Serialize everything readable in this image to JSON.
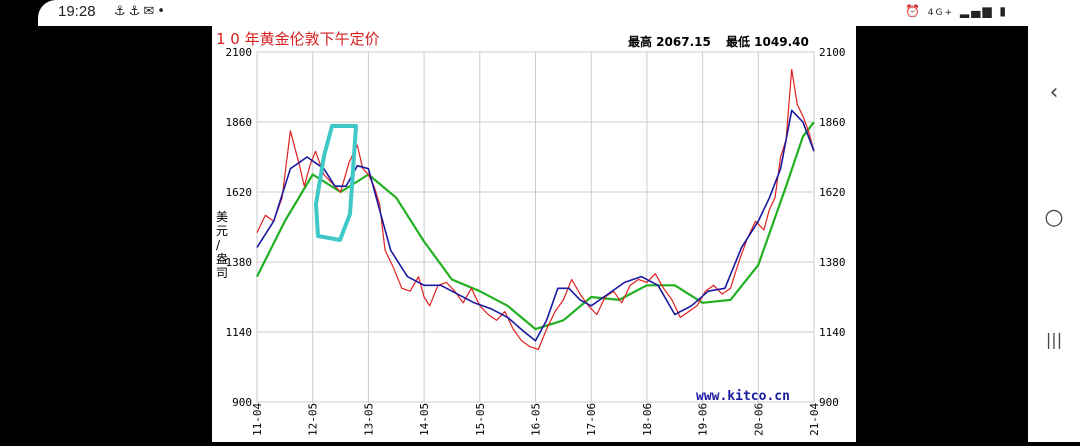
{
  "status_bar": {
    "time": "19:28",
    "left_icons": [
      "anchor-icon",
      "anchor-icon",
      "mail-icon",
      "dot-icon"
    ],
    "right_icons": [
      "alarm-icon",
      "4g-icon",
      "signal-icon",
      "battery-icon"
    ],
    "network_label": "4G+"
  },
  "nav": {
    "back": "‹",
    "home": "○",
    "recent": "|||"
  },
  "chart_data": {
    "type": "line",
    "title": "1 0 年黄金伦敦下午定价",
    "high_label": "最高 2067.15",
    "low_label": "最低 1049.40",
    "ylabel": "美元/盎司",
    "watermark": "www.kitco.cn",
    "ylim": [
      900,
      2100
    ],
    "y_ticks": [
      900,
      1140,
      1380,
      1620,
      1860,
      2100
    ],
    "x_ticks": [
      "11-04",
      "12-05",
      "13-05",
      "14-05",
      "15-05",
      "16-05",
      "17-06",
      "18-06",
      "19-06",
      "20-06",
      "21-04"
    ],
    "grid": true,
    "colors": {
      "price": "#e02020",
      "short_ma": "#1a1aa0",
      "long_ma": "#22b022",
      "highlight": "#40c8c8",
      "title": "#d62020"
    },
    "series": [
      {
        "key": "price",
        "x": [
          0,
          0.15,
          0.3,
          0.45,
          0.6,
          0.75,
          0.85,
          0.95,
          1.05,
          1.2,
          1.35,
          1.5,
          1.65,
          1.8,
          1.9,
          2.0,
          2.1,
          2.2,
          2.3,
          2.45,
          2.6,
          2.75,
          2.9,
          3.0,
          3.1,
          3.25,
          3.4,
          3.55,
          3.7,
          3.85,
          4.0,
          4.15,
          4.3,
          4.45,
          4.6,
          4.75,
          4.9,
          5.05,
          5.2,
          5.35,
          5.5,
          5.65,
          5.8,
          5.95,
          6.1,
          6.25,
          6.4,
          6.55,
          6.7,
          6.85,
          7.0,
          7.15,
          7.3,
          7.45,
          7.6,
          7.75,
          7.9,
          8.05,
          8.2,
          8.35,
          8.5,
          8.65,
          8.8,
          8.95,
          9.1,
          9.2,
          9.3,
          9.4,
          9.5,
          9.6,
          9.7,
          9.8,
          9.9,
          10.0
        ],
        "values": [
          1480,
          1540,
          1520,
          1600,
          1830,
          1720,
          1640,
          1710,
          1760,
          1680,
          1650,
          1620,
          1720,
          1780,
          1700,
          1680,
          1640,
          1580,
          1420,
          1360,
          1290,
          1280,
          1330,
          1260,
          1230,
          1300,
          1310,
          1280,
          1240,
          1290,
          1230,
          1200,
          1180,
          1210,
          1150,
          1110,
          1090,
          1080,
          1150,
          1210,
          1250,
          1320,
          1270,
          1230,
          1200,
          1260,
          1280,
          1240,
          1300,
          1320,
          1310,
          1340,
          1290,
          1250,
          1190,
          1210,
          1230,
          1280,
          1300,
          1270,
          1290,
          1380,
          1460,
          1520,
          1490,
          1560,
          1600,
          1740,
          1800,
          2040,
          1920,
          1880,
          1830,
          1760
        ]
      },
      {
        "key": "short_ma",
        "x": [
          0,
          0.3,
          0.6,
          0.9,
          1.2,
          1.4,
          1.6,
          1.8,
          2.0,
          2.2,
          2.4,
          2.7,
          3.0,
          3.3,
          3.6,
          3.9,
          4.2,
          4.5,
          4.8,
          5.0,
          5.2,
          5.4,
          5.6,
          5.8,
          6.0,
          6.3,
          6.6,
          6.9,
          7.2,
          7.5,
          7.8,
          8.1,
          8.4,
          8.7,
          9.0,
          9.2,
          9.4,
          9.6,
          9.8,
          10.0
        ],
        "values": [
          1430,
          1520,
          1700,
          1740,
          1700,
          1640,
          1640,
          1710,
          1700,
          1560,
          1420,
          1330,
          1300,
          1300,
          1270,
          1240,
          1220,
          1190,
          1140,
          1110,
          1180,
          1290,
          1290,
          1250,
          1230,
          1270,
          1310,
          1330,
          1300,
          1200,
          1230,
          1280,
          1290,
          1430,
          1520,
          1600,
          1700,
          1900,
          1860,
          1760
        ]
      },
      {
        "key": "long_ma",
        "x": [
          0,
          0.5,
          1.0,
          1.5,
          2.0,
          2.5,
          3.0,
          3.5,
          4.0,
          4.5,
          5.0,
          5.5,
          6.0,
          6.5,
          7.0,
          7.5,
          8.0,
          8.5,
          9.0,
          9.5,
          9.8,
          10.0
        ],
        "values": [
          1330,
          1520,
          1680,
          1620,
          1680,
          1600,
          1450,
          1320,
          1280,
          1230,
          1150,
          1180,
          1260,
          1250,
          1300,
          1300,
          1240,
          1250,
          1370,
          1640,
          1810,
          1860
        ]
      }
    ]
  }
}
